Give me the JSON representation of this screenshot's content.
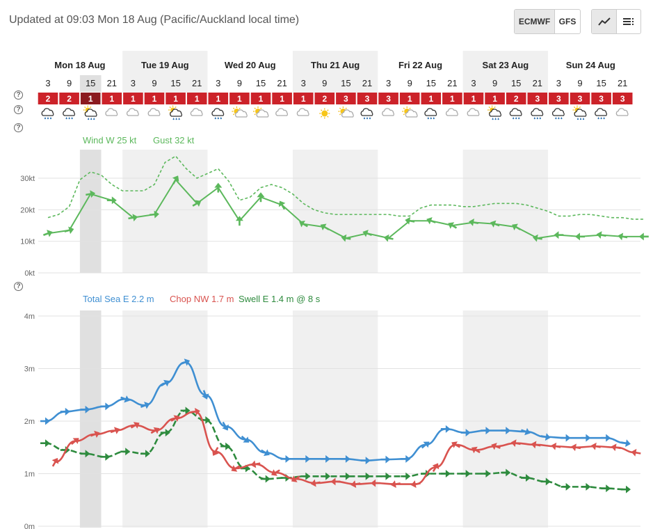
{
  "header": {
    "updated": "Updated at 09:03 Mon 18 Aug (Pacific/Auckland local time)",
    "models": [
      "ECMWF",
      "GFS"
    ],
    "active_model": "ECMWF",
    "view_icons": [
      "line-chart-icon",
      "list-icon"
    ]
  },
  "help_icon": "?",
  "days": [
    "Mon 18 Aug",
    "Tue 19 Aug",
    "Wed 20 Aug",
    "Thu 21 Aug",
    "Fri 22 Aug",
    "Sat 23 Aug",
    "Sun 24 Aug"
  ],
  "hours": [
    "3",
    "9",
    "15",
    "21",
    "3",
    "9",
    "15",
    "21",
    "3",
    "9",
    "15",
    "21",
    "3",
    "9",
    "15",
    "21",
    "3",
    "9",
    "15",
    "21",
    "3",
    "9",
    "15",
    "21",
    "3",
    "9",
    "15",
    "21"
  ],
  "ratings": [
    2,
    2,
    1,
    1,
    1,
    1,
    1,
    1,
    1,
    1,
    1,
    1,
    1,
    2,
    3,
    3,
    3,
    1,
    1,
    1,
    1,
    1,
    2,
    3,
    3,
    3,
    3,
    3
  ],
  "weather_icons": [
    "rain",
    "rain",
    "partly-sunny-rain",
    "cloud",
    "cloud",
    "cloud",
    "partly-sunny-rain",
    "cloud",
    "rain",
    "sunny-cloud",
    "sunny-cloud",
    "cloud",
    "cloud",
    "sun",
    "sunny-cloud",
    "rain",
    "cloud",
    "sunny-cloud",
    "rain",
    "cloud",
    "cloud",
    "partly-sunny-rain",
    "rain",
    "rain",
    "rain",
    "partly-sunny-rain",
    "rain",
    "cloud"
  ],
  "colors": {
    "rating_bg": "#cc2229",
    "rating_current": "#8b1a1f",
    "wind": "#5cb85c",
    "total_sea": "#3f8fd2",
    "chop": "#d9534f",
    "swell": "#2e8b3e",
    "band": "#f0f0f0",
    "current_band": "#e0e0e0"
  },
  "chart_data": [
    {
      "type": "line",
      "title": "",
      "legend": [
        "Wind W 25 kt",
        "Gust 32 kt"
      ],
      "y_ticks": [
        "0kt",
        "10kt",
        "20kt",
        "30kt"
      ],
      "ylim": [
        0,
        40
      ],
      "x_unit": "hours from Mon 18 Aug 00:00",
      "series": [
        {
          "name": "Wind",
          "style": "solid-arrows",
          "x": [
            3,
            9,
            15,
            21,
            27,
            33,
            39,
            45,
            51,
            57,
            63,
            69,
            75,
            81,
            87,
            93,
            99,
            105,
            111,
            117,
            123,
            129,
            135,
            141,
            147,
            153,
            159,
            165,
            171
          ],
          "values": [
            12.5,
            13.5,
            25,
            23,
            17.5,
            18.5,
            29.5,
            22,
            27,
            16.5,
            24,
            21.5,
            15.5,
            14.5,
            11,
            12.5,
            11,
            16.5,
            16.5,
            15,
            16,
            15.5,
            14.5,
            11,
            12,
            11.5,
            12,
            11.5,
            11.5
          ],
          "arrow_angles": [
            -20,
            -15,
            -10,
            0,
            -10,
            -5,
            -60,
            -30,
            -90,
            -90,
            -90,
            -120,
            -150,
            -150,
            -170,
            -160,
            -170,
            -170,
            -160,
            -150,
            -170,
            -160,
            -150,
            -170,
            -180,
            -180,
            -170,
            -170,
            -180
          ]
        },
        {
          "name": "Gust",
          "style": "dashed",
          "x": [
            3,
            6,
            9,
            12,
            15,
            18,
            21,
            24,
            27,
            30,
            33,
            36,
            39,
            42,
            45,
            48,
            51,
            54,
            57,
            60,
            63,
            66,
            69,
            72,
            75,
            78,
            81,
            84,
            87,
            90,
            93,
            96,
            99,
            102,
            105,
            108,
            111,
            114,
            117,
            120,
            123,
            126,
            129,
            132,
            135,
            138,
            141,
            144,
            147,
            150,
            153,
            156,
            159,
            162,
            165,
            168,
            171
          ],
          "values": [
            17.5,
            18.5,
            21,
            29.5,
            32,
            31,
            28,
            26,
            26,
            26,
            28,
            35,
            37,
            33,
            30,
            31.5,
            33,
            29,
            23,
            24,
            27,
            28,
            27,
            25,
            22,
            20,
            19,
            18.5,
            18.5,
            18.5,
            18.5,
            18.5,
            18.5,
            18,
            18,
            20.5,
            21.5,
            21.5,
            21.5,
            21,
            21,
            21.5,
            22,
            22,
            22,
            21.5,
            20.5,
            19.5,
            18,
            18,
            18.5,
            18.5,
            18,
            17.5,
            17.5,
            17,
            17
          ]
        }
      ]
    },
    {
      "type": "line",
      "title": "",
      "legend": [
        "Total Sea E 2.2 m",
        "Chop NW 1.7 m",
        "Swell E 1.4 m @ 8 s"
      ],
      "y_ticks": [
        "0m",
        "1m",
        "2m",
        "3m",
        "4m"
      ],
      "ylim": [
        0,
        4
      ],
      "x_unit": "hours from Mon 18 Aug 00:00",
      "series": [
        {
          "name": "Total Sea",
          "x": [
            0,
            6,
            12,
            18,
            24,
            30,
            36,
            42,
            48,
            54,
            60,
            66,
            72,
            78,
            84,
            90,
            96,
            102,
            108,
            114,
            120,
            126,
            132,
            138,
            144,
            150,
            156,
            162,
            168,
            174
          ],
          "values": [
            2.0,
            2.18,
            2.22,
            2.28,
            2.42,
            2.3,
            2.72,
            3.12,
            2.5,
            1.9,
            1.65,
            1.4,
            1.28,
            1.28,
            1.28,
            1.28,
            1.25,
            1.27,
            1.28,
            1.55,
            1.85,
            1.78,
            1.82,
            1.82,
            1.8,
            1.7,
            1.68,
            1.68,
            1.68,
            1.58
          ],
          "arrow_angles": [
            0,
            0,
            0,
            0,
            20,
            -20,
            -30,
            -20,
            70,
            60,
            40,
            30,
            0,
            0,
            0,
            0,
            0,
            0,
            0,
            -40,
            0,
            0,
            0,
            0,
            20,
            10,
            0,
            0,
            0,
            10
          ]
        },
        {
          "name": "Chop",
          "x": [
            3,
            9,
            15,
            21,
            27,
            33,
            39,
            45,
            51,
            57,
            63,
            69,
            75,
            81,
            87,
            93,
            99,
            105,
            111,
            117,
            123,
            129,
            135,
            141,
            147,
            153,
            159,
            165,
            171,
            177
          ],
          "values": [
            1.22,
            1.62,
            1.75,
            1.82,
            1.92,
            1.82,
            2.05,
            2.18,
            1.42,
            1.1,
            1.18,
            1.02,
            0.9,
            0.82,
            0.85,
            0.8,
            0.82,
            0.8,
            0.8,
            1.12,
            1.55,
            1.45,
            1.52,
            1.58,
            1.55,
            1.52,
            1.5,
            1.52,
            1.5,
            1.4
          ],
          "arrow_angles": [
            -60,
            -40,
            -20,
            -20,
            -30,
            -30,
            -30,
            -10,
            120,
            150,
            170,
            150,
            150,
            170,
            180,
            170,
            180,
            170,
            170,
            -60,
            -150,
            -150,
            -160,
            -170,
            -170,
            -170,
            -170,
            -170,
            -170,
            -170
          ]
        },
        {
          "name": "Swell",
          "x": [
            0,
            6,
            12,
            18,
            24,
            30,
            36,
            42,
            48,
            54,
            60,
            66,
            72,
            78,
            84,
            90,
            96,
            102,
            108,
            114,
            120,
            126,
            132,
            138,
            144,
            150,
            156,
            162,
            168,
            174
          ],
          "values": [
            1.58,
            1.45,
            1.38,
            1.32,
            1.42,
            1.38,
            1.78,
            2.2,
            2.02,
            1.52,
            1.1,
            0.9,
            0.92,
            0.95,
            0.95,
            0.95,
            0.95,
            0.95,
            0.95,
            1.0,
            1.0,
            1.0,
            1.0,
            1.02,
            0.92,
            0.85,
            0.75,
            0.75,
            0.72,
            0.7
          ],
          "arrow_angles": [
            0,
            0,
            0,
            0,
            0,
            0,
            0,
            0,
            0,
            0,
            0,
            0,
            0,
            0,
            0,
            0,
            0,
            0,
            0,
            0,
            0,
            0,
            0,
            0,
            0,
            0,
            0,
            0,
            0,
            0
          ]
        }
      ]
    }
  ]
}
